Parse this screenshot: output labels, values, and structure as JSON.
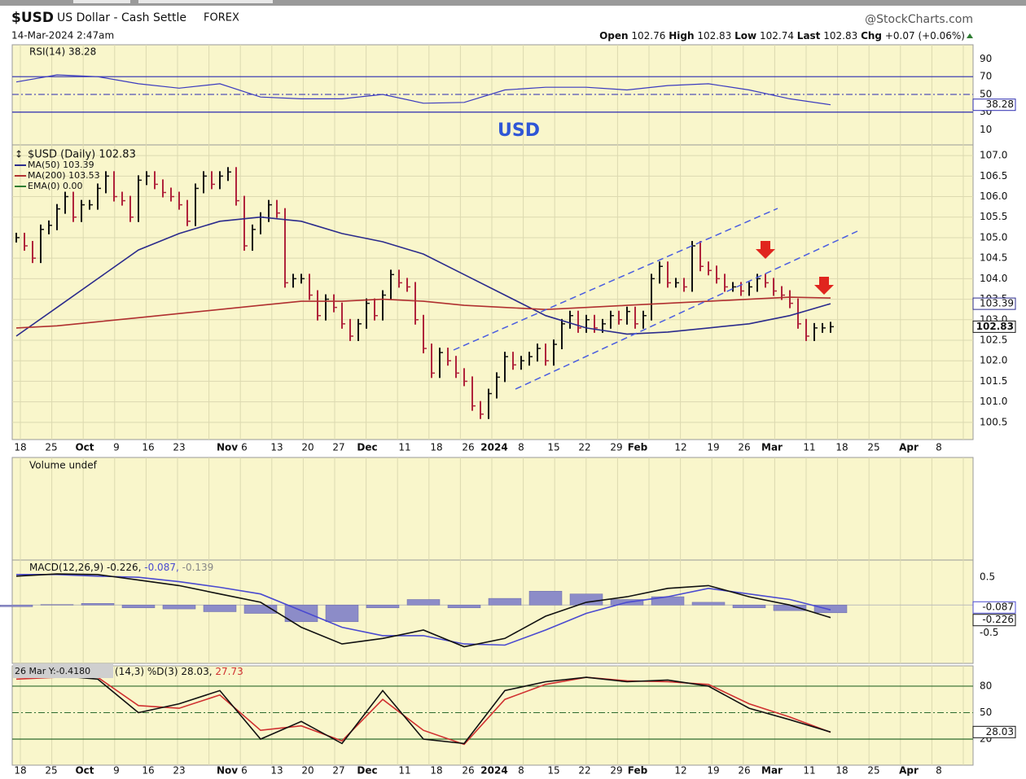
{
  "header": {
    "symbol": "$USD",
    "name": "US Dollar - Cash Settle",
    "exchange": "FOREX",
    "datetime": "14-Mar-2024 2:47am",
    "source": "@StockCharts.com",
    "open_label": "Open",
    "open": 102.76,
    "high_label": "High",
    "high": 102.83,
    "low_label": "Low",
    "low": 102.74,
    "last_label": "Last",
    "last": 102.83,
    "chg_label": "Chg",
    "chg": "+0.07 (+0.06%)",
    "annotation": "USD"
  },
  "x_axis_labels": [
    "18",
    "25",
    "Oct",
    "9",
    "16",
    "23",
    "Nov",
    "6",
    "13",
    "20",
    "27",
    "Dec",
    "11",
    "18",
    "26",
    "2024",
    "8",
    "15",
    "22",
    "29",
    "Feb",
    "12",
    "19",
    "26",
    "Mar",
    "11",
    "18",
    "25",
    "Apr",
    "8"
  ],
  "chart_data": [
    {
      "type": "line",
      "title": "RSI(14) 38.28",
      "ylim": [
        -7,
        106
      ],
      "yticks": [
        90,
        70,
        50,
        30,
        10
      ],
      "tick_line_styles": [
        "none",
        "solid",
        "dash",
        "solid",
        "none"
      ],
      "series": [
        {
          "style": "line",
          "color": "#3b3bbf",
          "values": [
            64,
            72,
            70,
            62,
            57,
            62,
            47,
            45,
            45,
            50,
            40,
            41,
            55,
            58,
            58,
            55,
            60,
            62,
            55,
            45,
            38.28
          ]
        }
      ]
    },
    {
      "type": "ohlc",
      "grid": true,
      "ylim": [
        100.08,
        107.26
      ],
      "yticks": [
        {
          "value": 107,
          "label": "107.0"
        },
        106.5,
        {
          "value": 106,
          "label": "106.0"
        },
        105.5,
        {
          "value": 105,
          "label": "105.0"
        },
        104.5,
        {
          "value": 104,
          "label": "104.0"
        },
        103.5,
        {
          "value": 103,
          "label": "103.0"
        },
        102.5,
        {
          "value": 102,
          "label": "102.0"
        },
        101.5,
        {
          "value": 101,
          "label": "101.0"
        },
        100.5
      ],
      "series": [
        {
          "name": "$USD (Daily) 102.83",
          "style": "bars",
          "color": "#111111",
          "down_color": "#b0243c",
          "values": [
            105.0,
            104.8,
            104.5,
            105.2,
            105.3,
            105.7,
            106.0,
            105.5,
            105.8,
            105.8,
            106.2,
            106.5,
            106.0,
            105.9,
            105.5,
            106.4,
            106.5,
            106.3,
            106.1,
            106.0,
            105.8,
            105.4,
            106.2,
            106.5,
            106.3,
            106.5,
            106.6,
            105.9,
            104.8,
            105.2,
            105.5,
            105.8,
            105.6,
            103.9,
            104.0,
            104.0,
            103.6,
            103.1,
            103.5,
            103.3,
            102.9,
            102.6,
            102.9,
            103.4,
            103.1,
            103.6,
            104.1,
            103.9,
            103.8,
            103.0,
            102.3,
            101.7,
            102.2,
            102.0,
            101.7,
            101.5,
            100.9,
            100.7,
            101.2,
            101.6,
            102.1,
            101.9,
            102.0,
            102.1,
            102.3,
            102.0,
            102.4,
            102.9,
            103.1,
            102.8,
            103.0,
            102.8,
            102.9,
            103.1,
            103.0,
            103.2,
            102.9,
            103.1,
            104.0,
            104.3,
            103.9,
            103.9,
            103.8,
            104.8,
            104.3,
            104.2,
            104.0,
            103.8,
            103.8,
            103.7,
            103.8,
            104.0,
            103.9,
            103.7,
            103.6,
            103.4,
            102.9,
            102.6,
            102.8,
            102.8,
            102.83
          ]
        },
        {
          "name": "MA(50) 103.39",
          "style": "line",
          "color": "#2b2b8c",
          "values": [
            102.6,
            103.3,
            104.0,
            104.7,
            105.1,
            105.4,
            105.5,
            105.4,
            105.1,
            104.9,
            104.6,
            104.1,
            103.6,
            103.1,
            102.8,
            102.65,
            102.7,
            102.8,
            102.9,
            103.1,
            103.39
          ]
        },
        {
          "name": "MA(200) 103.53",
          "style": "line",
          "color": "#b03030",
          "values": [
            102.8,
            102.85,
            102.95,
            103.05,
            103.15,
            103.25,
            103.35,
            103.45,
            103.45,
            103.5,
            103.45,
            103.35,
            103.3,
            103.25,
            103.3,
            103.35,
            103.4,
            103.45,
            103.5,
            103.55,
            103.53
          ]
        },
        {
          "name": "EMA(0) 0.00",
          "style": "none",
          "color": "#2e7d32",
          "values": []
        }
      ]
    },
    {
      "type": "volume",
      "title": "Volume undef"
    },
    {
      "type": "line",
      "label_parts": [
        "MACD(12,26,9) -0.226,",
        "-0.087,",
        "-0.139"
      ],
      "ylim": [
        -1.05,
        0.81
      ],
      "yticks": [
        0.5,
        -0.5
      ],
      "series": [
        {
          "style": "histogram",
          "color": "#8c8cc8",
          "values": [
            -0.03,
            0.01,
            0.03,
            -0.05,
            -0.07,
            -0.12,
            -0.15,
            -0.3,
            -0.3,
            -0.05,
            0.1,
            -0.05,
            0.12,
            0.25,
            0.2,
            0.1,
            0.15,
            0.05,
            -0.05,
            -0.1,
            -0.139
          ]
        },
        {
          "style": "line",
          "color": "#4a4ad0",
          "values": [
            0.55,
            0.55,
            0.52,
            0.5,
            0.42,
            0.32,
            0.2,
            -0.1,
            -0.4,
            -0.55,
            -0.55,
            -0.7,
            -0.72,
            -0.45,
            -0.15,
            0.05,
            0.15,
            0.3,
            0.2,
            0.1,
            -0.087
          ]
        },
        {
          "style": "line",
          "color": "#111111",
          "values": [
            0.52,
            0.56,
            0.55,
            0.45,
            0.35,
            0.2,
            0.05,
            -0.4,
            -0.7,
            -0.6,
            -0.45,
            -0.75,
            -0.6,
            -0.2,
            0.05,
            0.15,
            0.3,
            0.35,
            0.15,
            0.0,
            -0.226
          ]
        }
      ]
    },
    {
      "type": "line",
      "tooltip": "26 Mar Y:-0.4180",
      "label_parts": [
        "(14,3) %D(3) 28.03,",
        "27.73"
      ],
      "ylim": [
        -9.5,
        103
      ],
      "yticks": [
        80,
        50,
        20
      ],
      "tick_line_styles": [
        "solid",
        "dash",
        "solid"
      ],
      "series": [
        {
          "style": "line",
          "color": "#d03030",
          "values": [
            88,
            90,
            90,
            58,
            55,
            70,
            30,
            35,
            18,
            65,
            30,
            14,
            65,
            82,
            90,
            86,
            85,
            82,
            60,
            45,
            27.73
          ]
        },
        {
          "style": "line",
          "color": "#111111",
          "values": [
            90,
            92,
            88,
            50,
            60,
            75,
            20,
            40,
            15,
            75,
            20,
            15,
            75,
            85,
            90,
            85,
            87,
            80,
            55,
            42,
            28.03
          ]
        }
      ]
    }
  ]
}
